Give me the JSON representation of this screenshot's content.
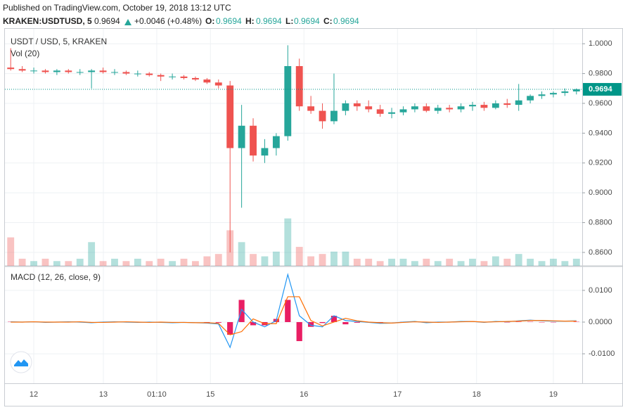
{
  "header": {
    "published": "Published on TradingView.com, October 19, 2018 13:12 UTC",
    "symbol": "KRAKEN:USDTUSD, 5",
    "last": "0.9694",
    "change": "+0.0046 (+0.48%)",
    "open_label": "O:",
    "open": "0.9694",
    "high_label": "H:",
    "high": "0.9694",
    "low_label": "L:",
    "low": "0.9694",
    "close_label": "C:",
    "close": "0.9694"
  },
  "chart_data": [
    {
      "type": "candlestick",
      "title": "USDT / USD, 5, KRAKEN",
      "subtitle": "Vol (20)",
      "grid": true,
      "up_color": "#26a69a",
      "down_color": "#ef5350",
      "xlim": [
        0,
        100
      ],
      "xticks": [
        {
          "value": 5,
          "label": "12"
        },
        {
          "value": 17.05,
          "label": "13"
        },
        {
          "value": 26.3,
          "label": "01:10"
        },
        {
          "value": 35.6,
          "label": "15"
        },
        {
          "value": 51.8,
          "label": "16"
        },
        {
          "value": 68,
          "label": "17"
        },
        {
          "value": 81.7,
          "label": "18"
        },
        {
          "value": 95,
          "label": "19"
        }
      ],
      "ylim": [
        0.851,
        1.01
      ],
      "yticks": [
        {
          "value": 0.86,
          "label": "0.8600"
        },
        {
          "value": 0.88,
          "label": "0.8800"
        },
        {
          "value": 0.9,
          "label": "0.9000"
        },
        {
          "value": 0.92,
          "label": "0.9200"
        },
        {
          "value": 0.94,
          "label": "0.9400"
        },
        {
          "value": 0.96,
          "label": "0.9600"
        },
        {
          "value": 0.98,
          "label": "0.9800"
        },
        {
          "value": 1.0,
          "label": "1.0000"
        }
      ],
      "y2lim": [
        0,
        100
      ],
      "last_price": {
        "value": 0.9694,
        "label": "0.9694"
      },
      "last_price_color": "#009688",
      "x": [
        1,
        3,
        5,
        7,
        9,
        11,
        13,
        15,
        17,
        19,
        21,
        23,
        25,
        27,
        29,
        31,
        33,
        35,
        37,
        39,
        41,
        43,
        45,
        47,
        49,
        51,
        53,
        55,
        57,
        59,
        61,
        63,
        65,
        67,
        69,
        71,
        73,
        75,
        77,
        79,
        81,
        83,
        85,
        87,
        89,
        91,
        93,
        95,
        97,
        99
      ],
      "open": [
        0.984,
        0.983,
        0.982,
        0.982,
        0.981,
        0.982,
        0.981,
        0.981,
        0.982,
        0.981,
        0.981,
        0.98,
        0.98,
        0.979,
        0.978,
        0.978,
        0.977,
        0.976,
        0.974,
        0.972,
        0.93,
        0.945,
        0.925,
        0.93,
        0.938,
        0.985,
        0.958,
        0.955,
        0.948,
        0.955,
        0.96,
        0.958,
        0.956,
        0.953,
        0.954,
        0.956,
        0.958,
        0.955,
        0.957,
        0.956,
        0.958,
        0.959,
        0.957,
        0.96,
        0.959,
        0.962,
        0.965,
        0.966,
        0.967,
        0.968
      ],
      "high": [
        0.997,
        0.985,
        0.984,
        0.983,
        0.983,
        0.983,
        0.983,
        0.983,
        0.984,
        0.983,
        0.982,
        0.982,
        0.981,
        0.98,
        0.98,
        0.979,
        0.978,
        0.977,
        0.976,
        0.975,
        0.959,
        0.95,
        0.936,
        0.94,
        0.999,
        0.99,
        0.965,
        0.96,
        0.98,
        0.962,
        0.962,
        0.962,
        0.959,
        0.957,
        0.958,
        0.96,
        0.96,
        0.959,
        0.959,
        0.96,
        0.961,
        0.961,
        0.962,
        0.963,
        0.973,
        0.966,
        0.968,
        0.968,
        0.97,
        0.97
      ],
      "low": [
        0.982,
        0.981,
        0.98,
        0.98,
        0.979,
        0.98,
        0.979,
        0.97,
        0.98,
        0.979,
        0.979,
        0.978,
        0.978,
        0.975,
        0.976,
        0.976,
        0.975,
        0.973,
        0.97,
        0.86,
        0.89,
        0.921,
        0.92,
        0.925,
        0.935,
        0.955,
        0.953,
        0.943,
        0.946,
        0.952,
        0.955,
        0.954,
        0.951,
        0.95,
        0.952,
        0.954,
        0.954,
        0.953,
        0.954,
        0.954,
        0.955,
        0.955,
        0.956,
        0.957,
        0.955,
        0.96,
        0.963,
        0.964,
        0.965,
        0.966
      ],
      "close": [
        0.983,
        0.982,
        0.982,
        0.981,
        0.982,
        0.981,
        0.981,
        0.982,
        0.981,
        0.981,
        0.98,
        0.98,
        0.979,
        0.978,
        0.978,
        0.977,
        0.976,
        0.974,
        0.972,
        0.93,
        0.945,
        0.925,
        0.93,
        0.938,
        0.985,
        0.958,
        0.955,
        0.948,
        0.955,
        0.96,
        0.958,
        0.956,
        0.953,
        0.954,
        0.956,
        0.958,
        0.955,
        0.957,
        0.956,
        0.958,
        0.959,
        0.957,
        0.96,
        0.959,
        0.962,
        0.965,
        0.966,
        0.967,
        0.968,
        0.9694
      ],
      "volume": [
        12,
        3,
        2,
        3,
        2,
        2,
        3,
        10,
        2,
        3,
        2,
        3,
        2,
        3,
        2,
        3,
        2,
        4,
        5,
        15,
        10,
        5,
        4,
        6,
        20,
        8,
        4,
        5,
        6,
        6,
        3,
        3,
        2,
        3,
        3,
        2,
        3,
        2,
        3,
        2,
        3,
        2,
        4,
        3,
        5,
        3,
        2,
        3,
        2,
        3
      ]
    },
    {
      "type": "macd",
      "title": "MACD (12, 26, close, 9)",
      "grid": true,
      "xlim": [
        0,
        100
      ],
      "ylim": [
        -0.0193,
        0.0173
      ],
      "yticks": [
        {
          "value": -0.01,
          "label": "-0.0100"
        },
        {
          "value": 0,
          "label": "0.0000"
        },
        {
          "value": 0.01,
          "label": "0.0100"
        }
      ],
      "x": [
        1,
        3,
        5,
        7,
        9,
        11,
        13,
        15,
        17,
        19,
        21,
        23,
        25,
        27,
        29,
        31,
        33,
        35,
        37,
        39,
        41,
        43,
        45,
        47,
        49,
        51,
        53,
        55,
        57,
        59,
        61,
        63,
        65,
        67,
        69,
        71,
        73,
        75,
        77,
        79,
        81,
        83,
        85,
        87,
        89,
        91,
        93,
        95,
        97,
        99
      ],
      "series": [
        {
          "style": "bar",
          "color": "#e91e63",
          "values": [
            0.0001,
            0,
            0,
            -0.0001,
            0,
            0.0001,
            -0.0001,
            -0.0001,
            0.0001,
            0.0001,
            -0.0001,
            -0.0001,
            0.0001,
            -0.0001,
            -0.0001,
            0,
            0,
            -0.0001,
            -0.0002,
            -0.004,
            0.007,
            -0.001,
            -0.001,
            0.001,
            0.007,
            -0.006,
            -0.0015,
            -0.0003,
            0.002,
            -0.0007,
            -0.0002,
            -0.0001,
            -0.0002,
            0,
            0.0001,
            0.0001,
            -0.0002,
            0.0001,
            0,
            0.0001,
            0,
            -0.0001,
            0.0001,
            -0.0001,
            0.0001,
            0.0001,
            -0.0001,
            -0.0001,
            0,
            0.0001
          ]
        },
        {
          "style": "line",
          "color": "#2196f3",
          "values": [
            0.0001,
            0,
            0.0001,
            -0.0001,
            0,
            0.0001,
            0,
            -0.0002,
            0,
            0.0001,
            0,
            -0.0001,
            0,
            -0.0001,
            -0.0002,
            -0.0001,
            -0.0002,
            -0.0003,
            -0.0006,
            -0.008,
            0.004,
            0,
            -0.0015,
            0.0005,
            0.015,
            0.002,
            -0.001,
            -0.0015,
            0.002,
            0.0005,
            0.0002,
            -0.0001,
            -0.0004,
            -0.0003,
            0,
            0.0002,
            -0.0002,
            0,
            0,
            0.0002,
            0.0002,
            -0.0001,
            0.0002,
            0.0001,
            0.0004,
            0.0006,
            0.0004,
            0.0003,
            0.0003,
            0.0004
          ]
        },
        {
          "style": "line",
          "color": "#ff6d00",
          "values": [
            0,
            0,
            0.0001,
            0,
            0,
            0,
            0.0001,
            -0.0001,
            -0.0001,
            0,
            0.0001,
            0,
            -0.0001,
            0,
            -0.0001,
            -0.0001,
            -0.0002,
            -0.0002,
            -0.0004,
            -0.004,
            -0.003,
            0.001,
            -0.0005,
            -0.0005,
            0.008,
            0.008,
            0.0005,
            -0.0012,
            0,
            0.0012,
            0.0004,
            0,
            -0.0002,
            -0.0003,
            -0.0001,
            0.0001,
            0,
            -0.0001,
            0,
            0.0001,
            0.0002,
            0,
            0.0001,
            0.0002,
            0.0003,
            0.0005,
            0.0005,
            0.0004,
            0.0003,
            0.0003
          ]
        }
      ]
    }
  ]
}
